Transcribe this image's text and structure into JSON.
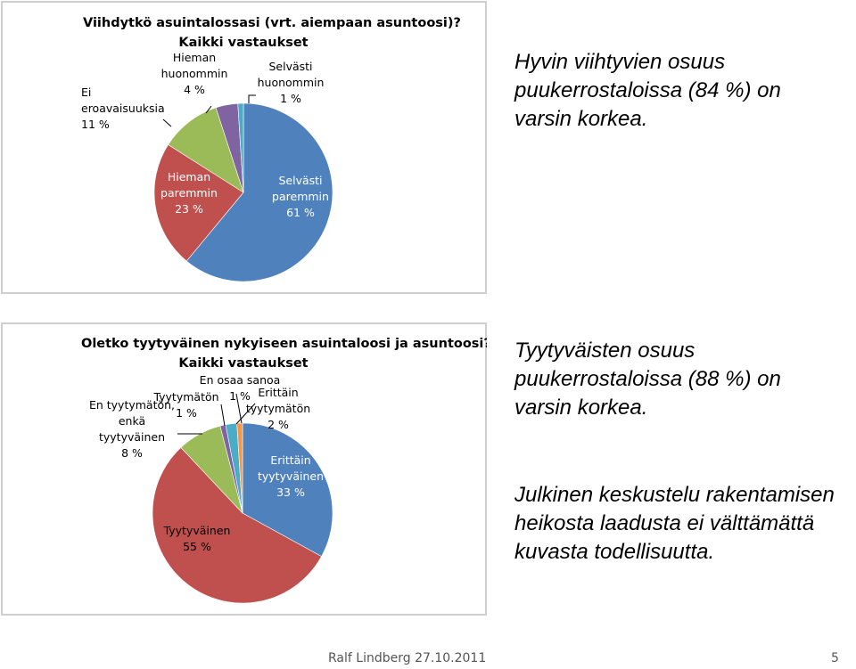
{
  "charts": [
    {
      "type": "pie",
      "title": "Viihdytkö asuintalossasi (vrt. aiempaan asuntoosi)?",
      "subtitle": "Kaikki vastaukset",
      "slices": [
        {
          "label": [
            "Selvästi",
            "paremmin",
            "61 %"
          ],
          "value": 61,
          "color": "#4f81bd"
        },
        {
          "label": [
            "Hieman",
            "paremmin",
            "23 %"
          ],
          "value": 23,
          "color": "#c0504d"
        },
        {
          "label": [
            "Ei",
            "eroavaisuuksia",
            "11 %"
          ],
          "value": 11,
          "color": "#9bbb59"
        },
        {
          "label": [
            "Hieman",
            "huonommin",
            "4 %"
          ],
          "value": 4,
          "color": "#8064a2"
        },
        {
          "label": [
            "Selvästi",
            "huonommin",
            "1 %"
          ],
          "value": 1,
          "color": "#4bacc6"
        }
      ]
    },
    {
      "type": "pie",
      "title": "Oletko tyytyväinen nykyiseen asuintaloosi ja asuntoosi?",
      "subtitle": "Kaikki vastaukset",
      "slices": [
        {
          "label": [
            "Erittäin",
            "tyytyväinen",
            "33 %"
          ],
          "value": 33,
          "color": "#4f81bd"
        },
        {
          "label": [
            "Tyytyväinen",
            "55 %"
          ],
          "value": 55,
          "color": "#c0504d"
        },
        {
          "label": [
            "En tyytymätön,",
            "enkä",
            "tyytyväinen",
            "8 %"
          ],
          "value": 8,
          "color": "#9bbb59"
        },
        {
          "label": [
            "Tyytymätön",
            "1 %"
          ],
          "value": 1,
          "color": "#8064a2"
        },
        {
          "label": [
            "Erittäin",
            "tyytymätön",
            "2 %"
          ],
          "value": 2,
          "color": "#4bacc6"
        },
        {
          "label": [
            "En osaa sanoa",
            "1 %"
          ],
          "value": 1,
          "color": "#f79646"
        }
      ]
    }
  ],
  "chart_data": [
    {
      "type": "pie",
      "title": "Viihdytkö asuintalossasi (vrt. aiempaan asuntoosi)?",
      "subtitle": "Kaikki vastaukset",
      "categories": [
        "Selvästi paremmin",
        "Hieman paremmin",
        "Ei eroavaisuuksia",
        "Hieman huonommin",
        "Selvästi huonommin"
      ],
      "values": [
        61,
        23,
        11,
        4,
        1
      ]
    },
    {
      "type": "pie",
      "title": "Oletko tyytyväinen nykyiseen asuintaloosi ja asuntoosi?",
      "subtitle": "Kaikki vastaukset",
      "categories": [
        "Erittäin tyytyväinen",
        "Tyytyväinen",
        "En tyytymätön, enkä tyytyväinen",
        "Tyytymätön",
        "Erittäin tyytymätön",
        "En osaa sanoa"
      ],
      "values": [
        33,
        55,
        8,
        1,
        2,
        1
      ]
    }
  ],
  "texts": {
    "text1": "Hyvin viihtyvien osuus puukerrostaloissa (84 %) on varsin korkea.",
    "text2": "Tyytyväisten osuus puukerrostaloissa (88 %) on varsin korkea.",
    "text3": "Julkinen keskustelu rakentamisen heikosta laadusta ei välttämättä kuvasta todellisuutta."
  },
  "footer": {
    "author_date": "Ralf Lindberg   27.10.2011",
    "page": "5"
  }
}
